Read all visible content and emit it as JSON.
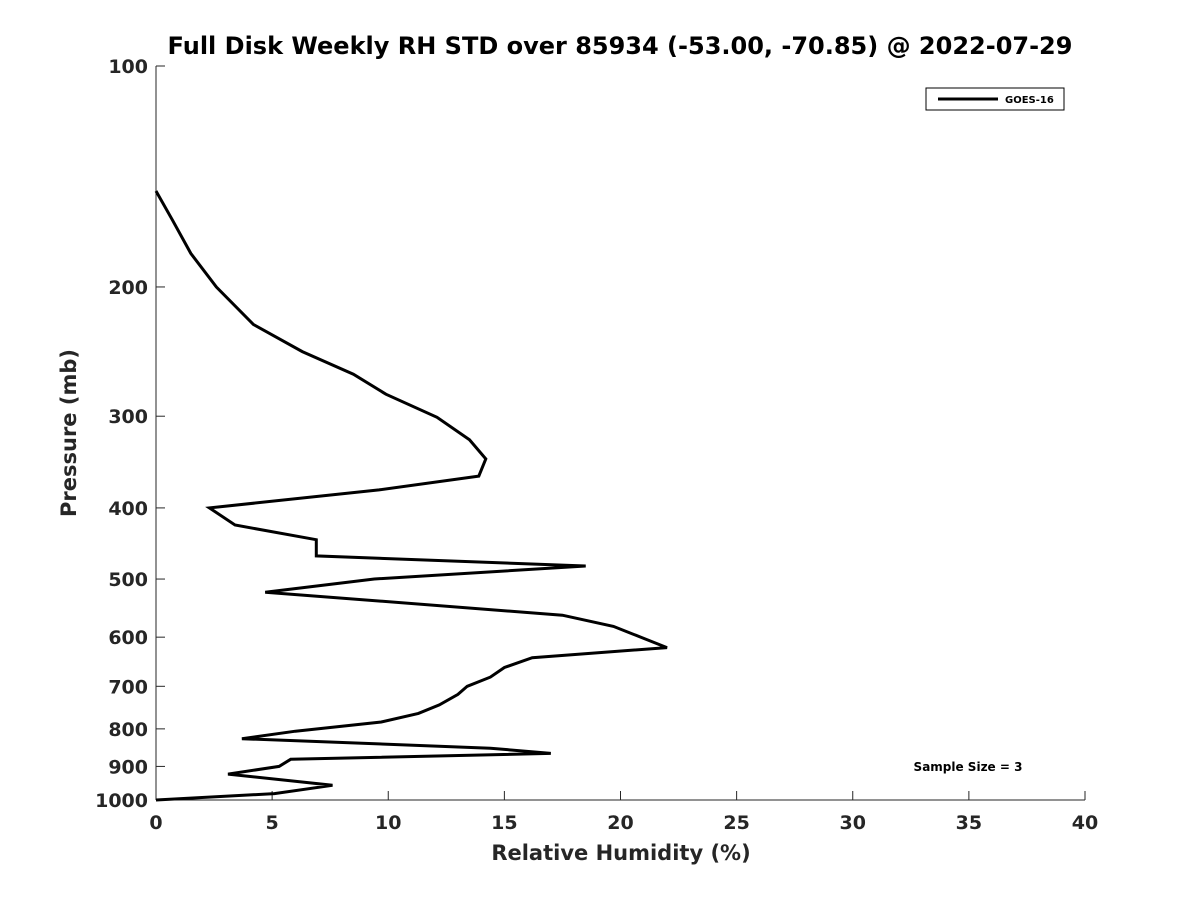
{
  "chart_data": {
    "type": "line",
    "title": "Full Disk Weekly RH STD over 85934 (-53.00, -70.85) @ 2022-07-29",
    "xlabel": "Relative Humidity (%)",
    "ylabel": "Pressure (mb)",
    "xlim": [
      0,
      40
    ],
    "ylim": [
      100,
      1000
    ],
    "y_scale": "log",
    "y_reversed": true,
    "xticks": [
      "0",
      "5",
      "10",
      "15",
      "20",
      "25",
      "30",
      "35",
      "40"
    ],
    "yticks": [
      "100",
      "200",
      "300",
      "400",
      "500",
      "600",
      "700",
      "800",
      "900",
      "1000"
    ],
    "grid": false,
    "legend_position": "top-right",
    "annotation": "Sample Size = 3",
    "series": [
      {
        "name": "GOES-16",
        "color": "#000000",
        "points": [
          [
            0.0,
            1000
          ],
          [
            5.1,
            980
          ],
          [
            7.6,
            955
          ],
          [
            3.1,
            922
          ],
          [
            5.3,
            900
          ],
          [
            5.8,
            880
          ],
          [
            17.0,
            864
          ],
          [
            14.4,
            850
          ],
          [
            3.7,
            825
          ],
          [
            6.0,
            806
          ],
          [
            9.7,
            783
          ],
          [
            11.3,
            762
          ],
          [
            12.2,
            742
          ],
          [
            13.0,
            718
          ],
          [
            13.4,
            700
          ],
          [
            14.4,
            680
          ],
          [
            15.0,
            660
          ],
          [
            16.2,
            640
          ],
          [
            22.0,
            620
          ],
          [
            19.7,
            580
          ],
          [
            17.5,
            560
          ],
          [
            4.7,
            521
          ],
          [
            9.4,
            500
          ],
          [
            18.5,
            480
          ],
          [
            6.9,
            465
          ],
          [
            6.9,
            442
          ],
          [
            3.4,
            422
          ],
          [
            2.3,
            400
          ],
          [
            9.6,
            378
          ],
          [
            13.9,
            362
          ],
          [
            14.2,
            343
          ],
          [
            13.5,
            323
          ],
          [
            12.1,
            301
          ],
          [
            9.9,
            280
          ],
          [
            8.5,
            263
          ],
          [
            6.3,
            245
          ],
          [
            4.2,
            225
          ],
          [
            2.6,
            200
          ],
          [
            1.5,
            180
          ],
          [
            0.7,
            162
          ],
          [
            0.0,
            148
          ]
        ]
      }
    ]
  }
}
